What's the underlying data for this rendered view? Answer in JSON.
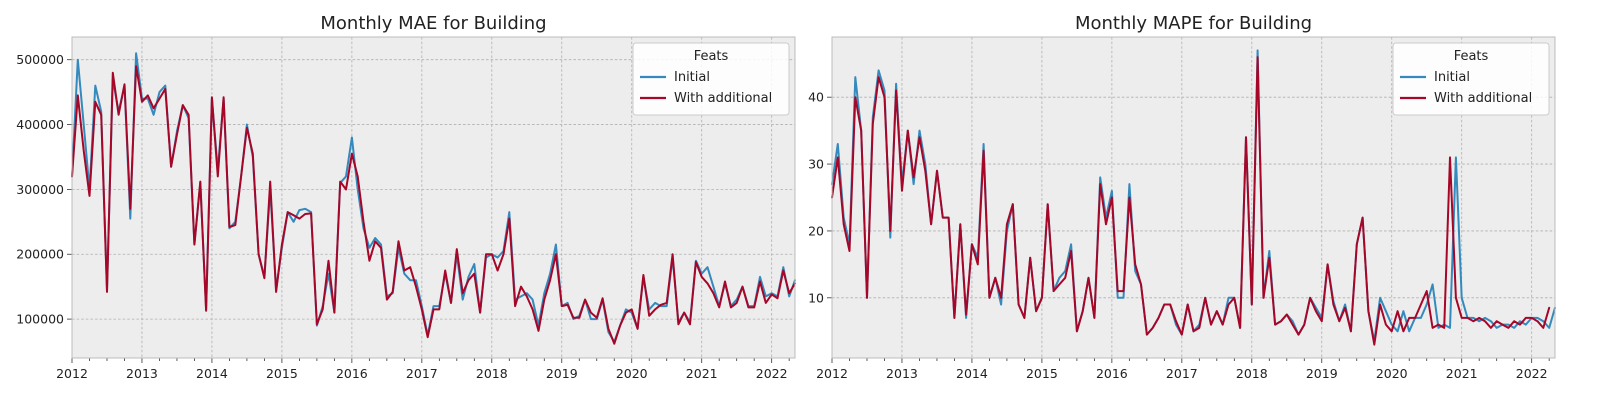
{
  "colors": {
    "initial": "#348abd",
    "additional": "#a60628"
  },
  "chart_data": [
    {
      "type": "line",
      "title": "Monthly MAE for Building",
      "xlabel": "",
      "ylabel": "",
      "x_start": "2012-01",
      "x_end": "2022-04",
      "xticks": [
        "2012",
        "2013",
        "2014",
        "2015",
        "2016",
        "2017",
        "2018",
        "2019",
        "2020",
        "2021",
        "2022"
      ],
      "ylim": [
        40000,
        535000
      ],
      "yticks": [
        100000,
        200000,
        300000,
        400000,
        500000
      ],
      "yticklabels": [
        "100000",
        "200000",
        "300000",
        "400000",
        "500000"
      ],
      "grid": true,
      "legend": {
        "title": "Feats",
        "position": "top-right"
      },
      "series": [
        {
          "name": "Initial",
          "color": "#348abd",
          "values": [
            320000,
            500000,
            400000,
            300000,
            460000,
            420000,
            145000,
            470000,
            420000,
            460000,
            255000,
            510000,
            440000,
            440000,
            415000,
            450000,
            460000,
            335000,
            390000,
            430000,
            410000,
            215000,
            310000,
            115000,
            440000,
            330000,
            440000,
            240000,
            250000,
            320000,
            400000,
            350000,
            200000,
            165000,
            300000,
            145000,
            210000,
            265000,
            250000,
            268000,
            270000,
            265000,
            90000,
            120000,
            170000,
            110000,
            310000,
            320000,
            380000,
            300000,
            240000,
            210000,
            225000,
            215000,
            135000,
            140000,
            210000,
            170000,
            160000,
            160000,
            120000,
            75000,
            120000,
            120000,
            170000,
            125000,
            200000,
            130000,
            165000,
            185000,
            110000,
            195000,
            200000,
            195000,
            205000,
            265000,
            130000,
            135000,
            140000,
            130000,
            90000,
            140000,
            170000,
            215000,
            120000,
            125000,
            100000,
            105000,
            130000,
            100000,
            100000,
            130000,
            80000,
            65000,
            90000,
            115000,
            110000,
            85000,
            165000,
            115000,
            125000,
            120000,
            120000,
            195000,
            95000,
            110000,
            95000,
            190000,
            170000,
            180000,
            150000,
            120000,
            155000,
            120000,
            130000,
            150000,
            120000,
            120000,
            165000,
            135000,
            140000,
            135000,
            180000,
            135000,
            160000
          ],
          "labels": [
            "500000"
          ]
        },
        {
          "name": "With additional",
          "color": "#a60628",
          "values": [
            320000,
            445000,
            360000,
            290000,
            435000,
            415000,
            142000,
            480000,
            415000,
            462000,
            270000,
            490000,
            435000,
            445000,
            425000,
            440000,
            455000,
            335000,
            385000,
            430000,
            415000,
            215000,
            312000,
            113000,
            442000,
            320000,
            442000,
            242000,
            245000,
            320000,
            395000,
            355000,
            200000,
            163000,
            312000,
            142000,
            215000,
            265000,
            260000,
            255000,
            262000,
            263000,
            92000,
            115000,
            190000,
            110000,
            312000,
            300000,
            355000,
            320000,
            250000,
            190000,
            220000,
            210000,
            130000,
            142000,
            220000,
            175000,
            180000,
            150000,
            115000,
            72000,
            115000,
            115000,
            175000,
            125000,
            208000,
            140000,
            160000,
            170000,
            110000,
            200000,
            200000,
            175000,
            200000,
            255000,
            120000,
            150000,
            135000,
            115000,
            82000,
            130000,
            160000,
            200000,
            120000,
            122000,
            102000,
            102000,
            130000,
            110000,
            102000,
            132000,
            85000,
            62000,
            90000,
            110000,
            115000,
            85000,
            168000,
            105000,
            115000,
            122000,
            125000,
            200000,
            92000,
            110000,
            92000,
            188000,
            165000,
            155000,
            140000,
            118000,
            158000,
            118000,
            125000,
            150000,
            118000,
            118000,
            158000,
            125000,
            138000,
            132000,
            175000,
            140000,
            155000
          ]
        }
      ]
    },
    {
      "type": "line",
      "title": "Monthly MAPE for Building",
      "xlabel": "",
      "ylabel": "",
      "x_start": "2012-01",
      "x_end": "2022-04",
      "xticks": [
        "2012",
        "2013",
        "2014",
        "2015",
        "2016",
        "2017",
        "2018",
        "2019",
        "2020",
        "2021",
        "2022"
      ],
      "ylim": [
        1,
        49
      ],
      "yticks": [
        10,
        20,
        30,
        40
      ],
      "yticklabels": [
        "10",
        "20",
        "30",
        "40"
      ],
      "grid": true,
      "legend": {
        "title": "Feats",
        "position": "top-right"
      },
      "series": [
        {
          "name": "Initial",
          "color": "#348abd",
          "values": [
            27,
            33,
            22,
            18,
            43,
            35,
            10,
            37,
            44,
            41,
            19,
            42,
            27,
            35,
            27,
            35,
            30,
            21,
            29,
            22,
            22,
            7,
            21,
            7,
            18,
            16,
            33,
            10,
            13,
            9,
            20,
            24,
            9,
            7,
            16,
            8,
            10,
            24,
            11,
            13,
            14,
            18,
            5,
            8,
            13,
            7,
            28,
            22,
            26,
            10,
            10,
            27,
            14,
            12,
            4.5,
            5.5,
            7,
            9,
            9,
            6,
            4.5,
            9,
            5,
            6,
            10,
            6,
            8,
            6,
            10,
            10,
            5.5,
            34,
            9,
            47,
            10,
            17,
            6,
            6.5,
            7.5,
            6.5,
            4.5,
            6,
            10,
            8.5,
            7,
            15,
            9.5,
            6.5,
            9,
            5,
            18,
            22,
            8,
            3.5,
            10,
            8,
            6,
            5,
            8,
            5,
            7,
            7,
            9,
            12,
            5.5,
            6,
            5.5,
            31,
            10,
            7,
            7,
            6.5,
            7,
            6.5,
            5.5,
            6,
            6,
            5.5,
            6.5,
            6,
            7,
            7,
            6.5,
            5.5,
            8.5
          ]
        },
        {
          "name": "With additional",
          "color": "#a60628",
          "values": [
            25,
            31,
            21,
            17,
            40,
            35,
            10,
            36,
            43,
            40,
            20,
            41,
            26,
            35,
            28,
            34,
            29,
            21,
            29,
            22,
            22,
            7,
            21,
            7.5,
            18,
            15,
            32,
            10,
            13,
            10,
            21,
            24,
            9,
            7,
            16,
            8,
            10,
            24,
            11,
            12,
            13,
            17,
            5,
            8,
            13,
            7,
            27,
            21,
            25,
            11,
            11,
            25,
            15,
            12,
            4.5,
            5.5,
            7,
            9,
            9,
            6.5,
            4.5,
            9,
            5,
            5.5,
            10,
            6,
            8,
            6,
            9,
            10,
            5.5,
            34,
            9,
            46,
            10,
            16,
            6,
            6.5,
            7.5,
            6,
            4.5,
            6,
            10,
            8,
            6.5,
            15,
            9,
            6.5,
            8.5,
            5,
            18,
            22,
            8,
            3,
            9,
            6,
            5,
            8,
            5,
            7,
            7,
            9,
            11,
            5.5,
            6,
            5.5,
            31,
            10,
            7,
            7,
            6.5,
            7,
            6.5,
            5.5,
            6.5,
            6,
            5.5,
            6.5,
            6,
            7,
            7,
            6.5,
            5.5,
            8.5
          ]
        }
      ]
    }
  ]
}
